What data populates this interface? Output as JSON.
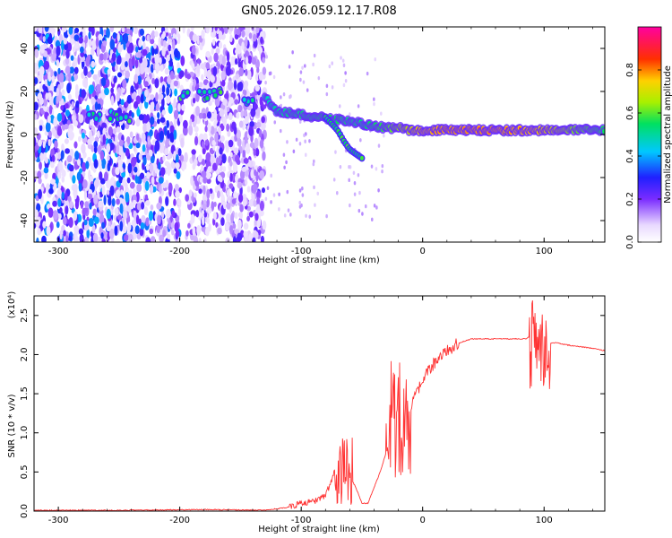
{
  "title": "GN05.2026.059.12.17.R08",
  "chart_data": [
    {
      "type": "heatmap",
      "name": "spectrogram",
      "xlabel": "Height of straight line (km)",
      "ylabel": "Frequency (Hz)",
      "xlim": [
        -320,
        150
      ],
      "ylim": [
        -50,
        50
      ],
      "xticks": [
        -300,
        -200,
        -100,
        0,
        100
      ],
      "yticks": [
        -40,
        -20,
        0,
        20,
        40
      ],
      "colorbar": {
        "label": "Normalized spectral amplitude",
        "range": [
          0,
          1
        ],
        "ticks": [
          0.0,
          0.2,
          0.4,
          0.6,
          0.8
        ]
      },
      "ridge": {
        "description_x_km": [
          -270,
          -255,
          -245,
          -195,
          -180,
          -170,
          -160,
          -145,
          -130,
          -120,
          -110,
          -100,
          -85,
          -70,
          -60,
          -50,
          -40,
          -30,
          -20,
          -10,
          0,
          20,
          60,
          90,
          100,
          120,
          150
        ],
        "frequency_hz": [
          8,
          9,
          8,
          18,
          18,
          19,
          17,
          16,
          18,
          10,
          10,
          9,
          8,
          7,
          6,
          5,
          4,
          3,
          3,
          2,
          2,
          2,
          2,
          2,
          2,
          2,
          2
        ],
        "amplitude": [
          0.3,
          0.35,
          0.3,
          0.45,
          0.4,
          0.4,
          0.35,
          0.35,
          0.4,
          0.45,
          0.5,
          0.5,
          0.55,
          0.55,
          0.5,
          0.5,
          0.55,
          0.6,
          0.7,
          0.8,
          0.9,
          0.95,
          0.95,
          0.9,
          0.85,
          0.7,
          0.55
        ]
      },
      "branch": {
        "x_km": [
          -80,
          -75,
          -70,
          -65,
          -60,
          -55,
          -50
        ],
        "frequency_hz": [
          8,
          5,
          2,
          -3,
          -7,
          -9,
          -11
        ]
      }
    },
    {
      "type": "line",
      "name": "snr",
      "xlabel": "Height of straight line (km)",
      "ylabel": "SNR (10 * v/v)",
      "y_multiplier": "(x10⁴)",
      "xlim": [
        -320,
        150
      ],
      "ylim": [
        0,
        2.75
      ],
      "xticks": [
        -300,
        -200,
        -100,
        0,
        100
      ],
      "yticks": [
        "0.0",
        "0.5",
        "1.0",
        "1.5",
        "2.0",
        "2.5"
      ],
      "color": "#ff3333",
      "series": [
        {
          "name": "SNR",
          "x": [
            -320,
            -250,
            -180,
            -130,
            -110,
            -100,
            -90,
            -80,
            -75,
            -70,
            -65,
            -60,
            -55,
            -50,
            -45,
            -40,
            -35,
            -30,
            -25,
            -20,
            -15,
            -10,
            -5,
            0,
            5,
            10,
            20,
            30,
            40,
            50,
            60,
            70,
            80,
            85,
            90,
            95,
            100,
            105,
            110,
            120,
            130,
            140,
            150
          ],
          "y": [
            0.01,
            0.01,
            0.02,
            0.01,
            0.05,
            0.1,
            0.12,
            0.2,
            0.4,
            0.65,
            0.6,
            0.45,
            0.3,
            0.1,
            0.1,
            0.3,
            0.5,
            0.75,
            0.95,
            1.05,
            1.1,
            1.3,
            1.5,
            1.65,
            1.8,
            1.9,
            2.05,
            2.15,
            2.2,
            2.2,
            2.2,
            2.2,
            2.2,
            2.2,
            2.25,
            2.35,
            2.2,
            2.15,
            2.15,
            2.12,
            2.1,
            2.08,
            2.05
          ]
        }
      ],
      "noise_bands": [
        {
          "x": [
            -72,
            -58
          ],
          "y": [
            0.05,
            0.95
          ]
        },
        {
          "x": [
            -30,
            -10
          ],
          "y": [
            0.4,
            1.95
          ]
        },
        {
          "x": [
            88,
            105
          ],
          "y": [
            1.5,
            2.7
          ]
        }
      ]
    }
  ]
}
